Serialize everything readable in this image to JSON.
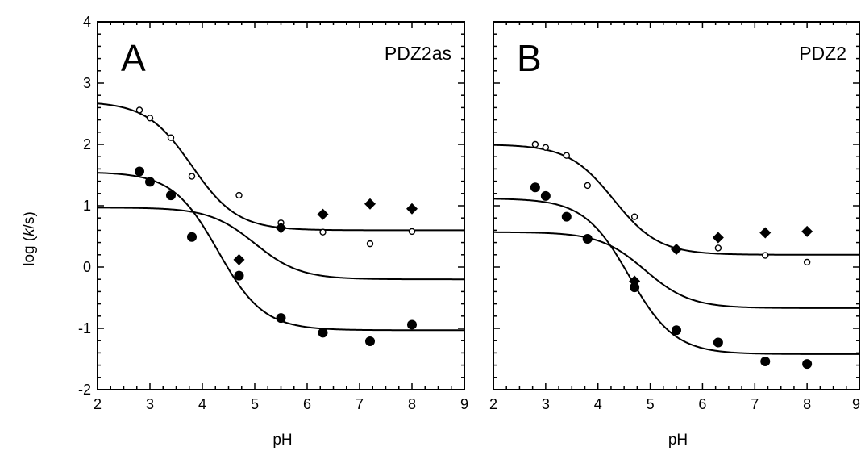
{
  "ylabel": "log (k/s)",
  "ylabel_parts": [
    "log (",
    "k",
    "/s)"
  ],
  "chart_data": [
    {
      "type": "scatter",
      "panel_label": "A",
      "title": "PDZ2as",
      "xlabel": "pH",
      "ylabel": "log (k/s)",
      "xlim": [
        2,
        9
      ],
      "ylim": [
        -2,
        4
      ],
      "xticks": [
        2,
        3,
        4,
        5,
        6,
        7,
        8,
        9
      ],
      "yticks": [
        -2,
        -1,
        0,
        1,
        2,
        3,
        4
      ],
      "series": [
        {
          "marker": "open-circle",
          "x": [
            2.8,
            3.0,
            3.4,
            3.8,
            4.7,
            5.5,
            6.3,
            7.2,
            8.0
          ],
          "y": [
            2.56,
            2.43,
            2.11,
            1.48,
            1.17,
            0.72,
            0.57,
            0.38,
            0.58
          ]
        },
        {
          "marker": "filled-circle",
          "x": [
            2.8,
            3.0,
            3.4,
            3.8,
            4.7,
            5.5,
            6.3,
            7.2,
            8.0
          ],
          "y": [
            1.56,
            1.39,
            1.17,
            0.49,
            -0.14,
            -0.83,
            -1.07,
            -1.21,
            -0.94
          ]
        },
        {
          "marker": "filled-diamond",
          "x": [
            4.7,
            5.5,
            6.3,
            7.2,
            8.0
          ],
          "y": [
            0.12,
            0.64,
            0.86,
            1.03,
            0.95
          ]
        }
      ],
      "fits": [
        {
          "low": 0.6,
          "high": 2.7,
          "pKa": 3.8
        },
        {
          "low": -1.03,
          "high": 1.55,
          "pKa": 4.3
        },
        {
          "low": -0.2,
          "high": 0.97,
          "pKa": 5.0
        }
      ]
    },
    {
      "type": "scatter",
      "panel_label": "B",
      "title": "PDZ2",
      "xlabel": "pH",
      "xlim": [
        2,
        9
      ],
      "ylim": [
        -2,
        4
      ],
      "xticks": [
        2,
        3,
        4,
        5,
        6,
        7,
        8,
        9
      ],
      "yticks": [
        -2,
        -1,
        0,
        1,
        2,
        3,
        4
      ],
      "series": [
        {
          "marker": "open-circle",
          "x": [
            2.8,
            3.0,
            3.4,
            3.8,
            4.7,
            5.5,
            6.3,
            7.2,
            8.0
          ],
          "y": [
            2.0,
            1.95,
            1.82,
            1.33,
            0.82,
            0.29,
            0.31,
            0.19,
            0.08
          ]
        },
        {
          "marker": "filled-circle",
          "x": [
            2.8,
            3.0,
            3.4,
            3.8,
            4.7,
            5.5,
            6.3,
            7.2,
            8.0
          ],
          "y": [
            1.3,
            1.16,
            0.82,
            0.46,
            -0.33,
            -1.03,
            -1.23,
            -1.54,
            -1.58
          ]
        },
        {
          "marker": "filled-diamond",
          "x": [
            4.7,
            5.5,
            6.3,
            7.2,
            8.0
          ],
          "y": [
            -0.23,
            0.29,
            0.48,
            0.56,
            0.58
          ]
        }
      ],
      "fits": [
        {
          "low": 0.2,
          "high": 2.0,
          "pKa": 4.3
        },
        {
          "low": -1.42,
          "high": 1.12,
          "pKa": 4.6
        },
        {
          "low": -0.67,
          "high": 0.57,
          "pKa": 4.9
        }
      ]
    }
  ]
}
